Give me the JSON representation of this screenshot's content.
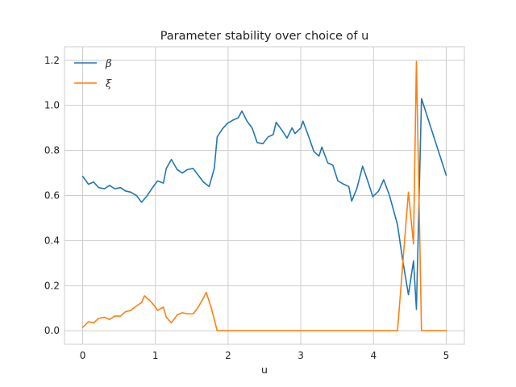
{
  "chart_data": {
    "type": "line",
    "title": "Parameter stability over choice of u",
    "xlabel": "u",
    "ylabel": "",
    "xlim": [
      -0.25,
      5.25
    ],
    "ylim": [
      -0.06,
      1.26
    ],
    "xticks": [
      0,
      1,
      2,
      3,
      4,
      5
    ],
    "yticks": [
      0.0,
      0.2,
      0.4,
      0.6,
      0.8,
      1.0,
      1.2
    ],
    "grid": true,
    "legend": "top-left",
    "series": [
      {
        "name": "β",
        "color": "#1f77b4",
        "points": [
          [
            0.0,
            0.685
          ],
          [
            0.08,
            0.65
          ],
          [
            0.15,
            0.66
          ],
          [
            0.22,
            0.635
          ],
          [
            0.3,
            0.63
          ],
          [
            0.37,
            0.645
          ],
          [
            0.44,
            0.63
          ],
          [
            0.52,
            0.635
          ],
          [
            0.59,
            0.62
          ],
          [
            0.66,
            0.615
          ],
          [
            0.74,
            0.6
          ],
          [
            0.81,
            0.57
          ],
          [
            0.89,
            0.6
          ],
          [
            0.96,
            0.635
          ],
          [
            1.03,
            0.665
          ],
          [
            1.11,
            0.655
          ],
          [
            1.15,
            0.72
          ],
          [
            1.22,
            0.76
          ],
          [
            1.3,
            0.715
          ],
          [
            1.37,
            0.7
          ],
          [
            1.44,
            0.715
          ],
          [
            1.52,
            0.72
          ],
          [
            1.59,
            0.69
          ],
          [
            1.66,
            0.66
          ],
          [
            1.74,
            0.64
          ],
          [
            1.81,
            0.72
          ],
          [
            1.85,
            0.86
          ],
          [
            1.92,
            0.895
          ],
          [
            1.99,
            0.92
          ],
          [
            2.07,
            0.935
          ],
          [
            2.14,
            0.945
          ],
          [
            2.19,
            0.975
          ],
          [
            2.26,
            0.93
          ],
          [
            2.33,
            0.9
          ],
          [
            2.4,
            0.835
          ],
          [
            2.48,
            0.83
          ],
          [
            2.55,
            0.86
          ],
          [
            2.62,
            0.87
          ],
          [
            2.66,
            0.925
          ],
          [
            2.74,
            0.89
          ],
          [
            2.81,
            0.855
          ],
          [
            2.88,
            0.9
          ],
          [
            2.92,
            0.875
          ],
          [
            3.0,
            0.9
          ],
          [
            3.03,
            0.93
          ],
          [
            3.11,
            0.86
          ],
          [
            3.18,
            0.795
          ],
          [
            3.25,
            0.775
          ],
          [
            3.29,
            0.815
          ],
          [
            3.37,
            0.745
          ],
          [
            3.44,
            0.735
          ],
          [
            3.51,
            0.665
          ],
          [
            3.59,
            0.65
          ],
          [
            3.66,
            0.64
          ],
          [
            3.7,
            0.575
          ],
          [
            3.77,
            0.63
          ],
          [
            3.85,
            0.73
          ],
          [
            3.92,
            0.665
          ],
          [
            3.99,
            0.595
          ],
          [
            4.07,
            0.62
          ],
          [
            4.14,
            0.67
          ],
          [
            4.22,
            0.6
          ],
          [
            4.33,
            0.47
          ],
          [
            4.4,
            0.315
          ],
          [
            4.48,
            0.16
          ],
          [
            4.55,
            0.31
          ],
          [
            4.59,
            0.095
          ],
          [
            4.66,
            1.03
          ],
          [
            5.0,
            0.69
          ]
        ]
      },
      {
        "name": "ξ",
        "color": "#ff7f0e",
        "points": [
          [
            0.0,
            0.015
          ],
          [
            0.08,
            0.04
          ],
          [
            0.15,
            0.035
          ],
          [
            0.22,
            0.055
          ],
          [
            0.3,
            0.06
          ],
          [
            0.37,
            0.05
          ],
          [
            0.44,
            0.065
          ],
          [
            0.52,
            0.065
          ],
          [
            0.59,
            0.085
          ],
          [
            0.66,
            0.09
          ],
          [
            0.74,
            0.11
          ],
          [
            0.81,
            0.125
          ],
          [
            0.85,
            0.155
          ],
          [
            0.92,
            0.135
          ],
          [
            0.99,
            0.11
          ],
          [
            1.03,
            0.09
          ],
          [
            1.11,
            0.105
          ],
          [
            1.15,
            0.06
          ],
          [
            1.22,
            0.035
          ],
          [
            1.3,
            0.07
          ],
          [
            1.37,
            0.08
          ],
          [
            1.44,
            0.075
          ],
          [
            1.52,
            0.075
          ],
          [
            1.59,
            0.105
          ],
          [
            1.66,
            0.145
          ],
          [
            1.7,
            0.17
          ],
          [
            1.77,
            0.1
          ],
          [
            1.85,
            0.0
          ],
          [
            2.0,
            0.0
          ],
          [
            3.0,
            0.0
          ],
          [
            4.0,
            0.0
          ],
          [
            4.33,
            0.0
          ],
          [
            4.48,
            0.615
          ],
          [
            4.55,
            0.385
          ],
          [
            4.59,
            1.195
          ],
          [
            4.66,
            0.0
          ],
          [
            5.0,
            0.0
          ]
        ]
      }
    ]
  }
}
